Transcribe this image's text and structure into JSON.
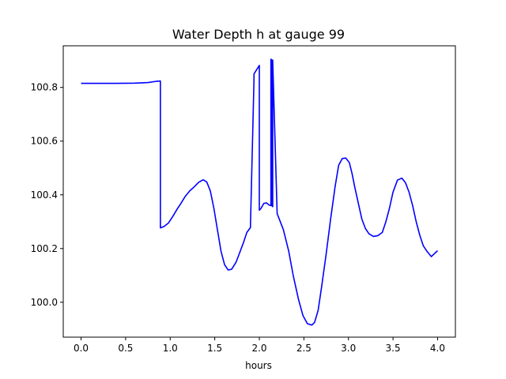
{
  "chart_data": {
    "type": "line",
    "title": "Water Depth h at gauge 99",
    "xlabel": "hours",
    "ylabel": "",
    "xlim": [
      -0.2,
      4.2
    ],
    "ylim": [
      99.87,
      100.955
    ],
    "xticks": [
      0.0,
      0.5,
      1.0,
      1.5,
      2.0,
      2.5,
      3.0,
      3.5,
      4.0
    ],
    "xtick_labels": [
      "0.0",
      "0.5",
      "1.0",
      "1.5",
      "2.0",
      "2.5",
      "3.0",
      "3.5",
      "4.0"
    ],
    "yticks": [
      100.0,
      100.2,
      100.4,
      100.6,
      100.8
    ],
    "ytick_labels": [
      "100.0",
      "100.2",
      "100.4",
      "100.6",
      "100.8"
    ],
    "grid": false,
    "series": [
      {
        "color": "#0000ff",
        "x": [
          0.0,
          0.2,
          0.4,
          0.6,
          0.75,
          0.85,
          0.89,
          0.89,
          0.93,
          0.98,
          1.03,
          1.08,
          1.12,
          1.17,
          1.22,
          1.27,
          1.32,
          1.37,
          1.41,
          1.45,
          1.49,
          1.53,
          1.57,
          1.61,
          1.65,
          1.69,
          1.74,
          1.78,
          1.82,
          1.86,
          1.9,
          1.94,
          1.94,
          2.0,
          2.0,
          2.02,
          2.05,
          2.08,
          2.11,
          2.13,
          2.13,
          2.14,
          2.14,
          2.15,
          2.15,
          2.2,
          2.27,
          2.33,
          2.38,
          2.44,
          2.49,
          2.54,
          2.59,
          2.62,
          2.66,
          2.7,
          2.75,
          2.8,
          2.85,
          2.89,
          2.93,
          2.97,
          3.01,
          3.04,
          3.07,
          3.11,
          3.15,
          3.19,
          3.23,
          3.28,
          3.33,
          3.38,
          3.42,
          3.46,
          3.5,
          3.55,
          3.6,
          3.64,
          3.68,
          3.72,
          3.76,
          3.8,
          3.84,
          3.88,
          3.93,
          4.0
        ],
        "y": [
          100.815,
          100.815,
          100.815,
          100.816,
          100.818,
          100.823,
          100.824,
          100.277,
          100.282,
          100.295,
          100.32,
          100.348,
          100.368,
          100.395,
          100.415,
          100.43,
          100.447,
          100.456,
          100.448,
          100.415,
          100.35,
          100.27,
          100.19,
          100.14,
          100.12,
          100.123,
          100.15,
          100.185,
          100.22,
          100.26,
          100.278,
          100.826,
          100.85,
          100.882,
          100.343,
          100.35,
          100.368,
          100.37,
          100.362,
          100.36,
          100.905,
          100.902,
          100.36,
          100.356,
          100.902,
          100.33,
          100.27,
          100.19,
          100.1,
          100.01,
          99.95,
          99.92,
          99.915,
          99.925,
          99.97,
          100.06,
          100.18,
          100.31,
          100.43,
          100.51,
          100.535,
          100.537,
          100.52,
          100.48,
          100.43,
          100.37,
          100.31,
          100.275,
          100.255,
          100.245,
          100.248,
          100.26,
          100.3,
          100.35,
          100.41,
          100.455,
          100.462,
          100.445,
          100.41,
          100.36,
          100.3,
          100.25,
          100.21,
          100.19,
          100.17,
          100.192
        ]
      }
    ]
  }
}
